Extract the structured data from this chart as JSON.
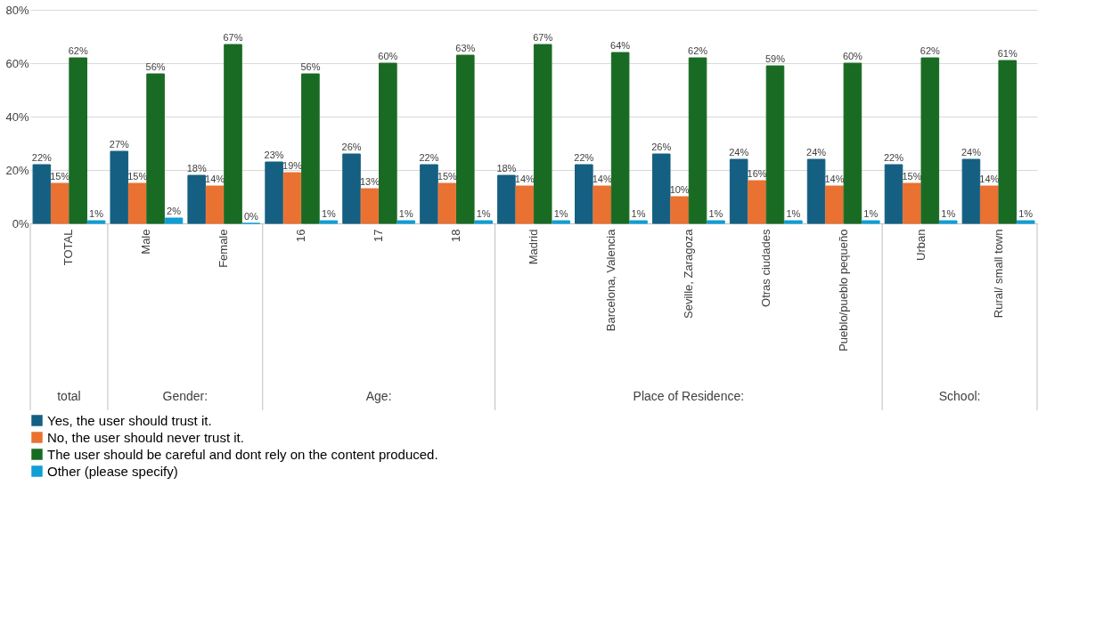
{
  "chart_data": {
    "type": "bar",
    "categories": [
      "TOTAL",
      "Male",
      "Female",
      "16",
      "17",
      "18",
      "Madrid",
      "Barcelona, Valencia",
      "Seville, Zaragoza",
      "Otras ciudades",
      "Pueblo/pueblo pequeño",
      "Urban",
      "Rural/ small town"
    ],
    "series": [
      {
        "name": "Yes, the user should trust it.",
        "color": "#156082",
        "values": [
          22,
          27,
          18,
          23,
          26,
          22,
          18,
          22,
          26,
          24,
          24,
          22,
          24
        ],
        "value_labels": [
          "22%",
          "27%",
          "18%",
          "23%",
          "26%",
          "22%",
          "18%",
          "22%",
          "26%",
          "24%",
          "24%",
          "22%",
          "24%"
        ]
      },
      {
        "name": "No, the user should never trust it.",
        "color": "#e97132",
        "values": [
          15,
          15,
          14,
          19,
          13,
          15,
          14,
          14,
          10,
          16,
          14,
          15,
          14
        ],
        "value_labels": [
          "15%",
          "15%",
          "14%",
          "19%",
          "13%",
          "15%",
          "14%",
          "14%",
          "10%",
          "16%",
          "14%",
          "15%",
          "14%"
        ]
      },
      {
        "name": "The user should be careful and dont rely on the content produced.",
        "color": "#196b24",
        "values": [
          62,
          56,
          67,
          56,
          60,
          63,
          67,
          64,
          62,
          59,
          60,
          62,
          61
        ],
        "value_labels": [
          "62%",
          "56%",
          "67%",
          "56%",
          "60%",
          "63%",
          "67%",
          "64%",
          "62%",
          "59%",
          "60%",
          "62%",
          "61%"
        ]
      },
      {
        "name": "Other (please specify)",
        "color": "#0f9ed5",
        "values": [
          1,
          2,
          0,
          1,
          1,
          1,
          1,
          1,
          1,
          1,
          1,
          1,
          1
        ],
        "value_labels": [
          "1%",
          "2%",
          "0%",
          "1%",
          "1%",
          "1%",
          "1%",
          "1%",
          "1%",
          "1%",
          "1%",
          "1%",
          "1%"
        ]
      }
    ],
    "ylim": [
      0,
      80
    ],
    "yticks": [
      {
        "value": 0,
        "label": "0%"
      },
      {
        "value": 20,
        "label": "20%"
      },
      {
        "value": 40,
        "label": "40%"
      },
      {
        "value": 60,
        "label": "60%"
      },
      {
        "value": 80,
        "label": "80%"
      }
    ],
    "grid": "y",
    "legend": "bottom",
    "annotations": [
      "total",
      "Gender:",
      "Age:",
      "Place of Residence:",
      "School:"
    ]
  }
}
